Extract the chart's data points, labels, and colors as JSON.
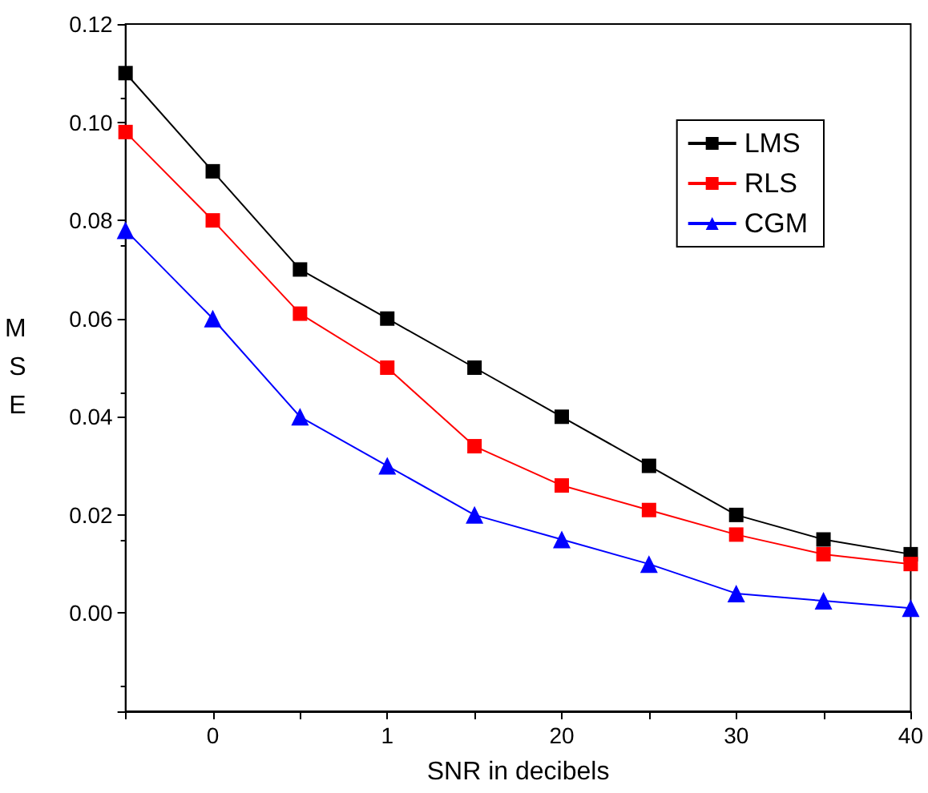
{
  "chart_data": {
    "type": "line",
    "xlabel": "SNR in decibels",
    "ylabel": "MSE",
    "categories": [
      null,
      "0",
      null,
      "1",
      null,
      "20",
      null,
      "30",
      null,
      "40"
    ],
    "series": [
      {
        "name": "LMS",
        "color": "#000000",
        "marker": "square",
        "values": [
          0.11,
          0.09,
          0.07,
          0.06,
          0.05,
          0.04,
          0.03,
          0.02,
          0.015,
          0.012
        ]
      },
      {
        "name": "RLS",
        "color": "#ff0000",
        "marker": "square",
        "values": [
          0.098,
          0.08,
          0.061,
          0.05,
          0.034,
          0.026,
          0.021,
          0.016,
          0.012,
          0.01
        ]
      },
      {
        "name": "CGM",
        "color": "#0000ff",
        "marker": "triangle",
        "values": [
          0.078,
          0.06,
          0.04,
          0.03,
          0.02,
          0.015,
          0.01,
          0.004,
          0.0025,
          0.001
        ]
      }
    ],
    "ylim": [
      -0.02,
      0.12
    ],
    "yticks": [
      {
        "value": -0.02,
        "label": null
      },
      {
        "value": 0,
        "label": "0.00"
      },
      {
        "value": 0.02,
        "label": "0.02"
      },
      {
        "value": 0.04,
        "label": "0.04"
      },
      {
        "value": 0.06,
        "label": "0.06"
      },
      {
        "value": 0.08,
        "label": "0.08"
      },
      {
        "value": 0.1,
        "label": "0.10"
      },
      {
        "value": 0.12,
        "label": "0.12"
      }
    ],
    "legend": "top right",
    "grid": false,
    "line_style": "solid"
  }
}
